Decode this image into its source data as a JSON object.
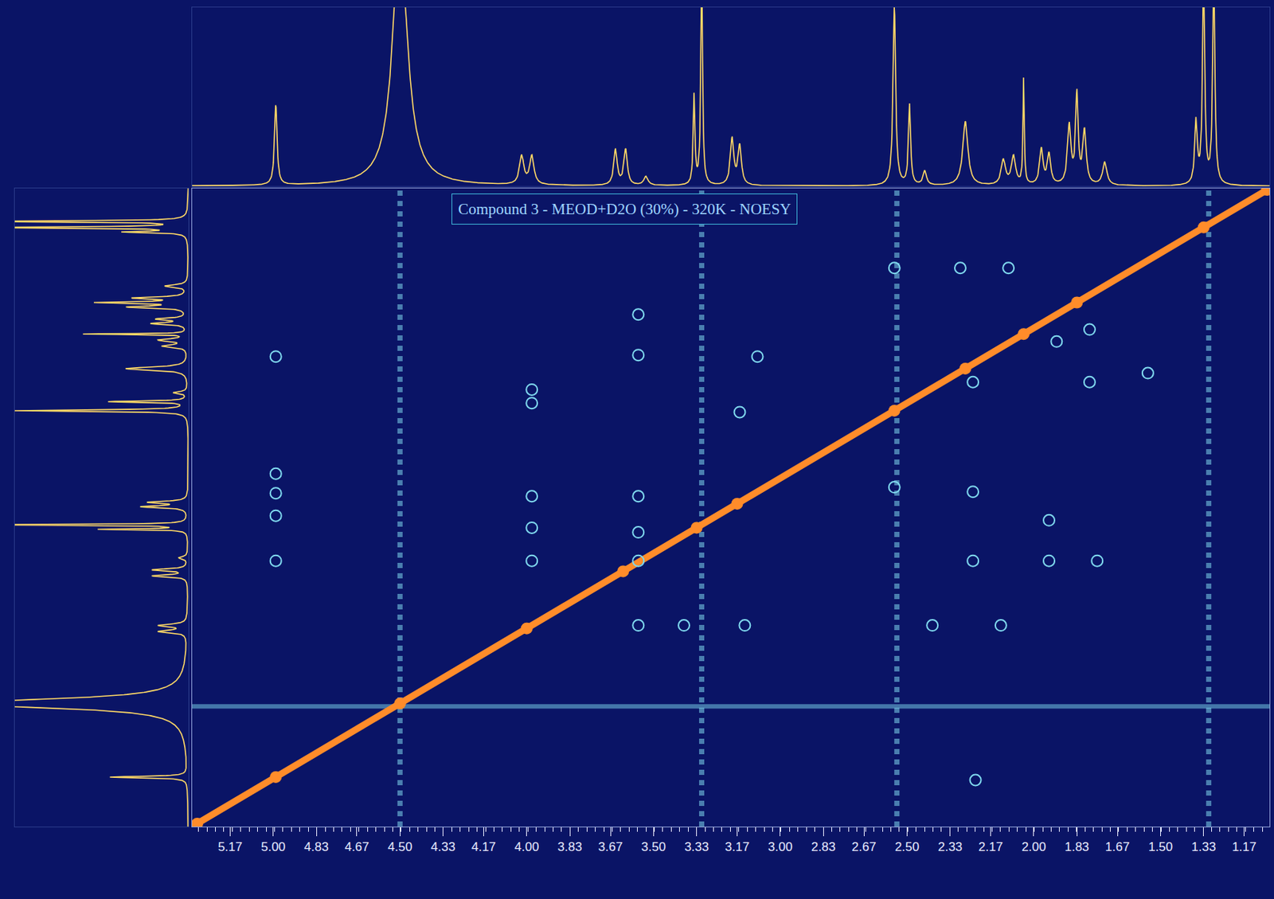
{
  "chart_data": {
    "type": "nmr_2d_noesy",
    "title": "Compound 3 - MEOD+D2O (30%) - 320K - NOESY",
    "xlim": [
      5.32,
      1.07
    ],
    "ylim": [
      5.32,
      1.07
    ],
    "xticks": [
      5.17,
      {
        "value": 5,
        "label": "5.00"
      },
      4.83,
      4.67,
      {
        "value": 4.5,
        "label": "4.50"
      },
      4.33,
      4.17,
      {
        "value": 4,
        "label": "4.00"
      },
      3.83,
      3.67,
      {
        "value": 3.5,
        "label": "3.50"
      },
      3.33,
      3.17,
      {
        "value": 3,
        "label": "3.00"
      },
      2.83,
      2.67,
      {
        "value": 2.5,
        "label": "2.50"
      },
      2.33,
      2.17,
      {
        "value": 2,
        "label": "2.00"
      },
      1.83,
      1.67,
      {
        "value": 1.5,
        "label": "1.50"
      },
      1.33,
      1.17
    ],
    "tick_labels": "x",
    "grid": false,
    "spectrum": {
      "color": "#ffd966",
      "ylim": [
        0,
        1
      ],
      "peaks": [
        {
          "ppm": 4.99,
          "height": 0.45,
          "width": 0.006
        },
        {
          "ppm": 4.5,
          "height": 1.4,
          "width": 0.035
        },
        {
          "ppm": 4.02,
          "height": 0.16,
          "width": 0.01
        },
        {
          "ppm": 3.98,
          "height": 0.16,
          "width": 0.01
        },
        {
          "ppm": 3.65,
          "height": 0.2,
          "width": 0.008
        },
        {
          "ppm": 3.61,
          "height": 0.2,
          "width": 0.008
        },
        {
          "ppm": 3.53,
          "height": 0.05,
          "width": 0.01
        },
        {
          "ppm": 3.34,
          "height": 0.5,
          "width": 0.004
        },
        {
          "ppm": 3.31,
          "height": 1.2,
          "width": 0.004
        },
        {
          "ppm": 3.19,
          "height": 0.26,
          "width": 0.008
        },
        {
          "ppm": 3.16,
          "height": 0.22,
          "width": 0.008
        },
        {
          "ppm": 2.55,
          "height": 1.0,
          "width": 0.006
        },
        {
          "ppm": 2.49,
          "height": 0.45,
          "width": 0.005
        },
        {
          "ppm": 2.43,
          "height": 0.08,
          "width": 0.008
        },
        {
          "ppm": 2.27,
          "height": 0.36,
          "width": 0.012
        },
        {
          "ppm": 2.12,
          "height": 0.14,
          "width": 0.01
        },
        {
          "ppm": 2.08,
          "height": 0.16,
          "width": 0.01
        },
        {
          "ppm": 2.04,
          "height": 0.6,
          "width": 0.003
        },
        {
          "ppm": 1.97,
          "height": 0.2,
          "width": 0.008
        },
        {
          "ppm": 1.94,
          "height": 0.17,
          "width": 0.008
        },
        {
          "ppm": 1.86,
          "height": 0.33,
          "width": 0.008
        },
        {
          "ppm": 1.83,
          "height": 0.5,
          "width": 0.006
        },
        {
          "ppm": 1.8,
          "height": 0.3,
          "width": 0.008
        },
        {
          "ppm": 1.72,
          "height": 0.13,
          "width": 0.01
        },
        {
          "ppm": 1.36,
          "height": 0.35,
          "width": 0.006
        },
        {
          "ppm": 1.33,
          "height": 1.2,
          "width": 0.005
        },
        {
          "ppm": 1.29,
          "height": 1.2,
          "width": 0.005
        }
      ]
    },
    "diagonal": {
      "color": "#ff8c2a",
      "ppm": [
        5.3,
        4.99,
        4.5,
        4.0,
        3.62,
        3.33,
        3.17,
        2.55,
        2.27,
        2.04,
        1.83,
        1.33,
        1.08
      ]
    },
    "cross_peaks": {
      "color": "#7fd8ee",
      "marker": "circle-open",
      "x": [
        4.99,
        4.99,
        4.99,
        4.99,
        4.99,
        3.98,
        3.98,
        3.98,
        3.98,
        3.98,
        3.56,
        3.56,
        3.56,
        3.56,
        3.56,
        3.56,
        3.38,
        3.14,
        3.09,
        3.16,
        2.24,
        2.24,
        2.24,
        1.94,
        1.94,
        2.4,
        2.55,
        2.23,
        1.91,
        2.55,
        2.29,
        2.1,
        1.78,
        1.78,
        1.55,
        2.13,
        1.75
      ],
      "y": [
        2.19,
        2.97,
        3.1,
        3.25,
        3.55,
        2.41,
        2.5,
        3.12,
        3.33,
        3.55,
        1.91,
        2.18,
        3.12,
        3.36,
        3.55,
        3.98,
        3.98,
        3.98,
        2.19,
        2.56,
        2.36,
        3.09,
        3.55,
        3.28,
        3.55,
        3.98,
        3.06,
        5.01,
        2.09,
        1.6,
        1.6,
        1.6,
        2.01,
        2.36,
        2.3,
        3.98,
        3.55
      ]
    },
    "t1_noise": {
      "color": "#7fd8ee",
      "ppm": [
        4.5,
        3.31,
        2.54,
        1.31
      ]
    },
    "f2_noise": {
      "color": "#7fd8ee",
      "ppm": [
        4.52
      ]
    }
  }
}
